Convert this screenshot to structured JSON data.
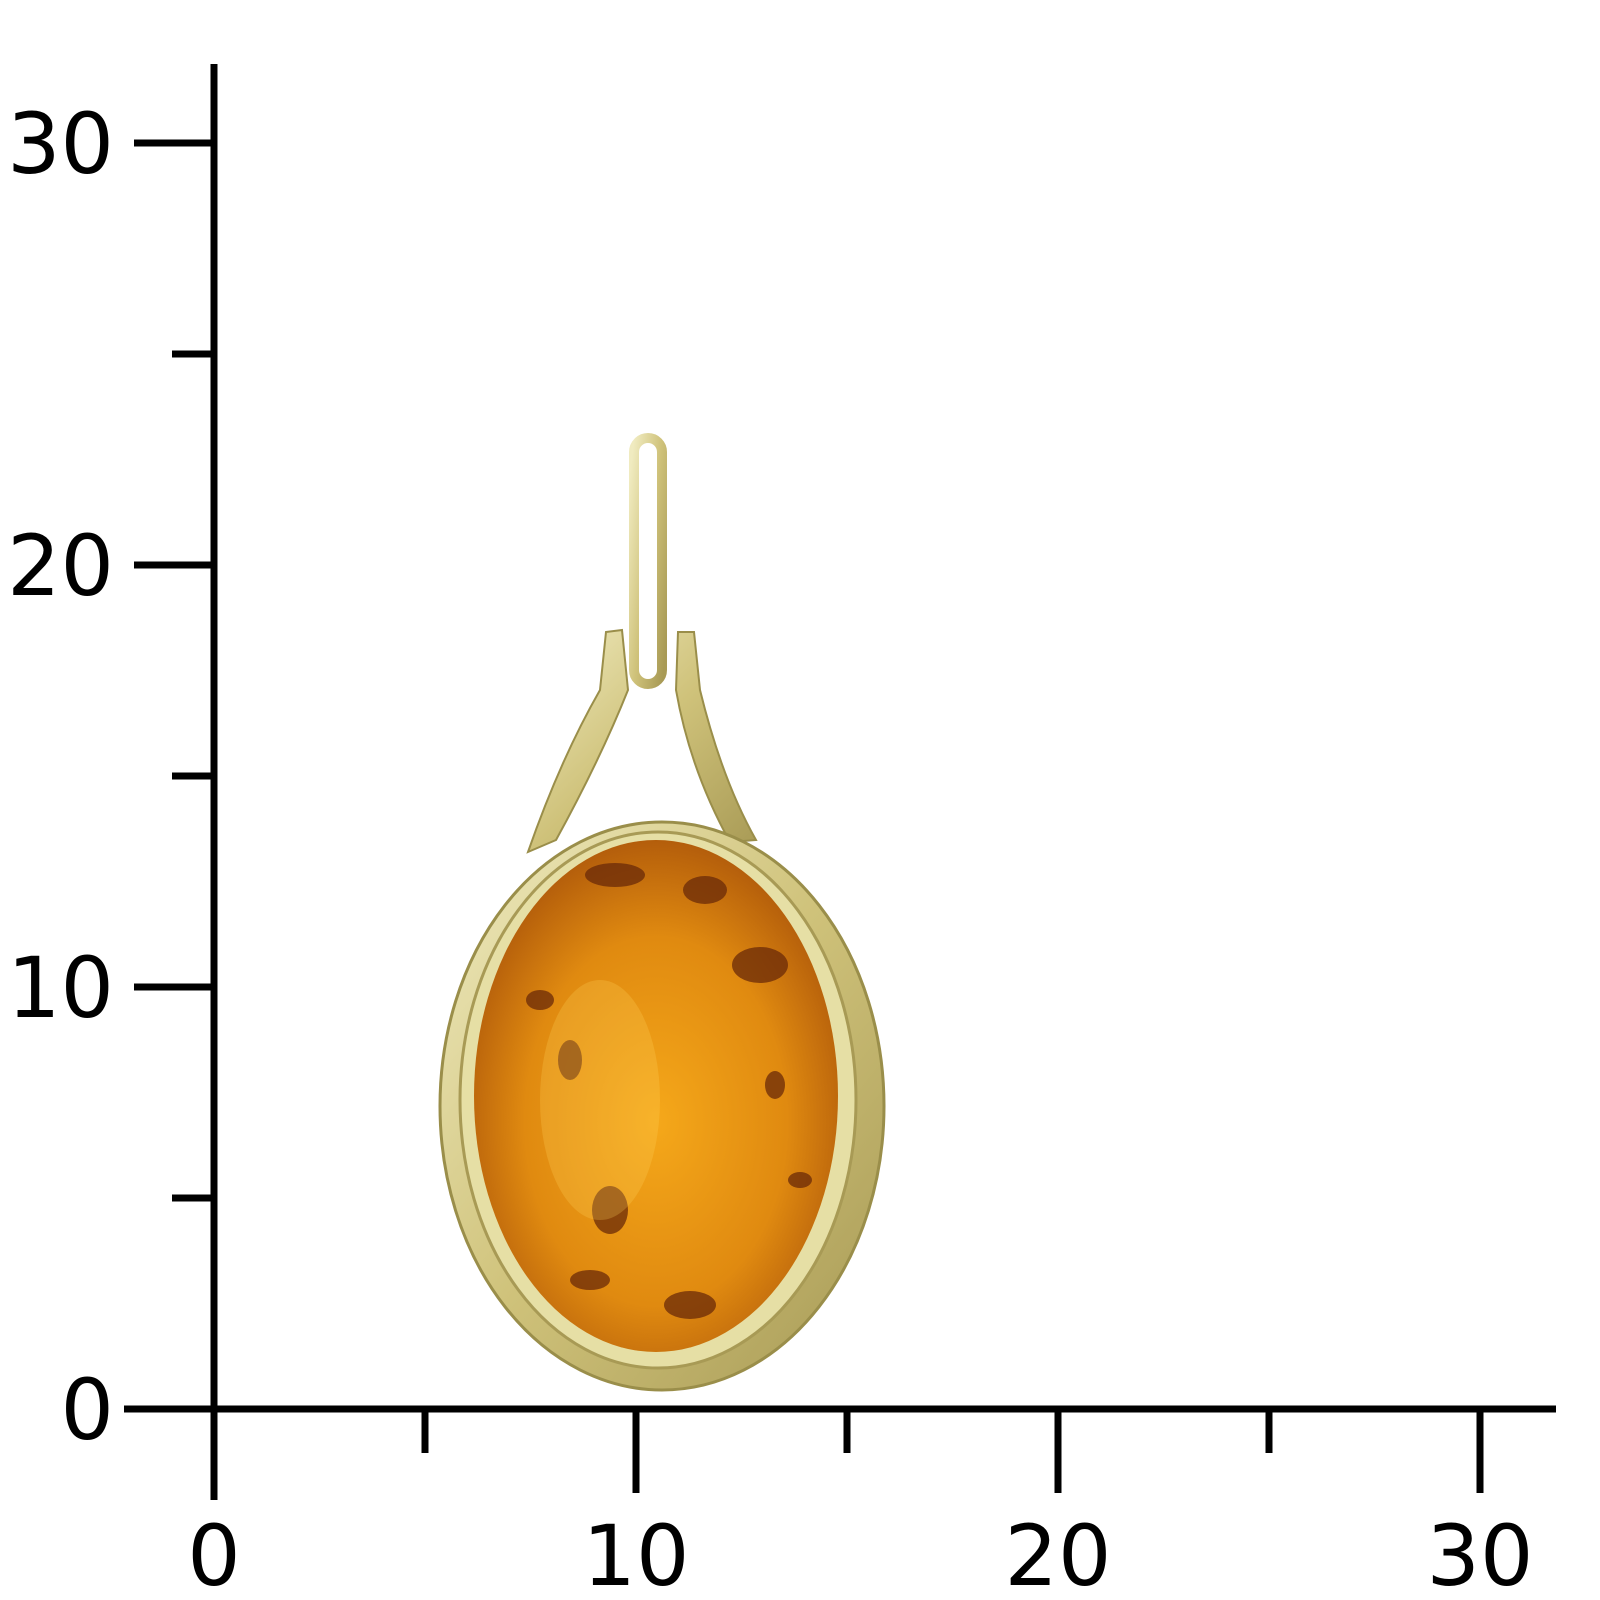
{
  "chart_data": {
    "type": "other",
    "title": "",
    "xlabel": "",
    "ylabel": "",
    "xlim": [
      0,
      30
    ],
    "ylim": [
      0,
      30
    ],
    "x_ticks_major": [
      0,
      10,
      20,
      30
    ],
    "x_ticks_minor": [
      5,
      15,
      25
    ],
    "y_ticks_major": [
      0,
      10,
      20,
      30
    ],
    "y_ticks_minor": [
      5,
      15,
      25
    ],
    "x_tick_labels": [
      "0",
      "10",
      "20",
      "30"
    ],
    "y_tick_labels": [
      "0",
      "10",
      "20",
      "30"
    ],
    "grid": false,
    "subject": "amber pendant in gold bezel with bail",
    "colors": {
      "axis": "#000000",
      "amber": "#e08a10",
      "gold": "#d8cf8a"
    }
  }
}
